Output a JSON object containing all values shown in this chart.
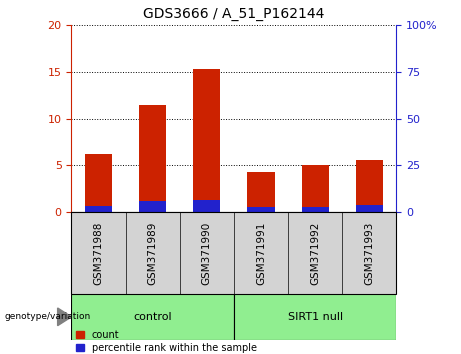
{
  "title": "GDS3666 / A_51_P162144",
  "categories": [
    "GSM371988",
    "GSM371989",
    "GSM371990",
    "GSM371991",
    "GSM371992",
    "GSM371993"
  ],
  "count_values": [
    6.2,
    11.5,
    15.3,
    4.3,
    5.1,
    5.6
  ],
  "percentile_values": [
    3.5,
    6.2,
    6.8,
    2.8,
    3.1,
    3.7
  ],
  "ylim_left": [
    0,
    20
  ],
  "ylim_right": [
    0,
    100
  ],
  "yticks_left": [
    0,
    5,
    10,
    15,
    20
  ],
  "yticks_right": [
    0,
    25,
    50,
    75,
    100
  ],
  "yticklabels_right": [
    "0",
    "25",
    "50",
    "75",
    "100%"
  ],
  "bar_color_red": "#cc2200",
  "bar_color_blue": "#2222cc",
  "bar_width": 0.5,
  "group1_label": "control",
  "group2_label": "SIRT1 null",
  "group1_indices": [
    0,
    1,
    2
  ],
  "group2_indices": [
    3,
    4,
    5
  ],
  "group_bg_color": "#90ee90",
  "sample_bg_color": "#d3d3d3",
  "legend_count_label": "count",
  "legend_percentile_label": "percentile rank within the sample",
  "genotype_label": "genotype/variation",
  "title_fontsize": 10,
  "tick_fontsize": 8,
  "label_fontsize": 7.5,
  "group_fontsize": 8,
  "legend_fontsize": 7
}
